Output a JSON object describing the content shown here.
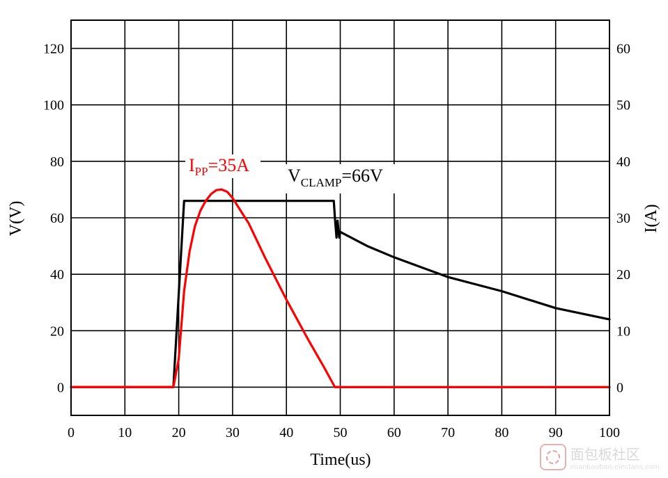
{
  "chart_data": {
    "type": "line",
    "xlabel": "Time(us)",
    "ylabel_left": "V(V)",
    "ylabel_right": "I(A)",
    "xlim": [
      0,
      100
    ],
    "ylim_left": [
      -10,
      130
    ],
    "ylim_right": [
      -5,
      65
    ],
    "x_ticks": [
      "0",
      "10",
      "20",
      "30",
      "40",
      "50",
      "60",
      "70",
      "80",
      "90",
      "100"
    ],
    "y_left_ticks": [
      "0",
      "20",
      "40",
      "60",
      "80",
      "100",
      "120"
    ],
    "y_right_ticks": [
      "0",
      "10",
      "20",
      "30",
      "40",
      "50",
      "60"
    ],
    "grid": true,
    "series": [
      {
        "axis": "left",
        "color": "#000000",
        "points": [
          [
            0,
            0
          ],
          [
            19,
            0
          ],
          [
            21,
            66
          ],
          [
            48.8,
            66
          ],
          [
            49,
            60
          ],
          [
            49.3,
            53
          ],
          [
            49.5,
            59
          ],
          [
            49.8,
            53
          ],
          [
            50,
            55
          ],
          [
            55,
            50
          ],
          [
            60,
            46
          ],
          [
            70,
            39
          ],
          [
            80,
            34
          ],
          [
            90,
            28
          ],
          [
            100,
            24
          ]
        ]
      },
      {
        "axis": "right",
        "color": "#ff0000",
        "points": [
          [
            0,
            0
          ],
          [
            19,
            0
          ],
          [
            20,
            5
          ],
          [
            21,
            17
          ],
          [
            22,
            24
          ],
          [
            23,
            28.5
          ],
          [
            24,
            31.2
          ],
          [
            25,
            33
          ],
          [
            26,
            34.2
          ],
          [
            27,
            34.9
          ],
          [
            28,
            35
          ],
          [
            29,
            34.6
          ],
          [
            30,
            33.5
          ],
          [
            33,
            29
          ],
          [
            36,
            23
          ],
          [
            40,
            15.5
          ],
          [
            44,
            8.5
          ],
          [
            47,
            3.5
          ],
          [
            49,
            0
          ],
          [
            100,
            0
          ]
        ]
      }
    ],
    "annotations": {
      "ipp": {
        "main": "I",
        "sub": "PP",
        "rest": "=35A",
        "color": "#ff0000"
      },
      "vclamp": {
        "main": "V",
        "sub": "CLAMP",
        "rest": "=66V",
        "color": "#000000"
      }
    }
  },
  "watermark": {
    "text": "面包板社区",
    "sub": "mianbaoban.elecfans.com"
  }
}
